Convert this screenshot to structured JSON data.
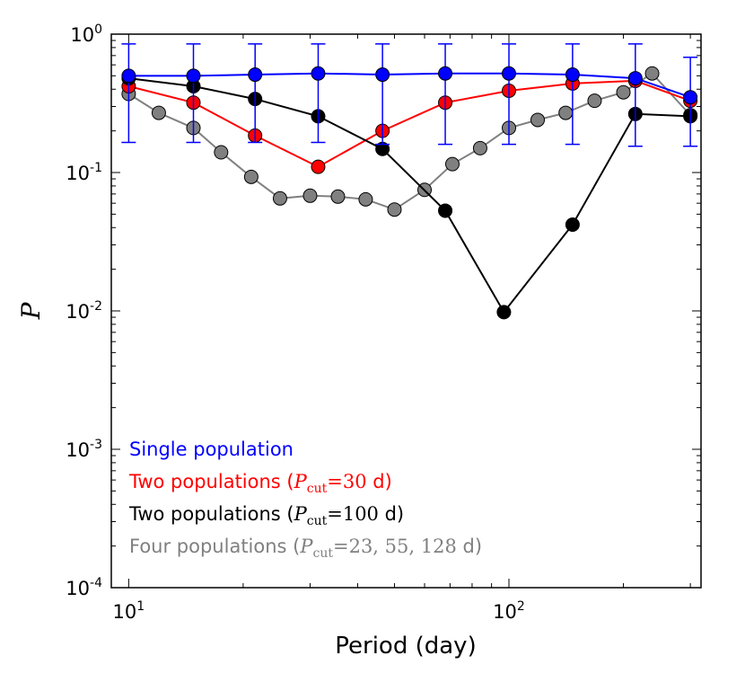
{
  "chart_data": {
    "type": "line",
    "xscale": "log",
    "yscale": "log",
    "xlim": [
      9.0,
      320.0
    ],
    "ylim": [
      0.0001,
      1.0
    ],
    "xlabel": "Period (day)",
    "ylabel": "P",
    "xticks": [
      {
        "value": 10,
        "base": "10",
        "exp": "1"
      },
      {
        "value": 100,
        "base": "10",
        "exp": "2"
      }
    ],
    "yticks": [
      {
        "value": 1,
        "base": "10",
        "exp": "0"
      },
      {
        "value": 0.1,
        "base": "10",
        "exp": "-1"
      },
      {
        "value": 0.01,
        "base": "10",
        "exp": "-2"
      },
      {
        "value": 0.001,
        "base": "10",
        "exp": "-3"
      },
      {
        "value": 0.0001,
        "base": "10",
        "exp": "-4"
      }
    ],
    "series": [
      {
        "name": "Four populations",
        "color": "#808080",
        "x": [
          10,
          12,
          14.8,
          17.5,
          21,
          25,
          30,
          35.5,
          42,
          50,
          60,
          71,
          84,
          100,
          119,
          141,
          168,
          200,
          238,
          300
        ],
        "values": [
          0.37,
          0.27,
          0.21,
          0.14,
          0.093,
          0.065,
          0.068,
          0.067,
          0.064,
          0.054,
          0.075,
          0.115,
          0.15,
          0.21,
          0.24,
          0.27,
          0.33,
          0.38,
          0.52,
          0.26
        ]
      },
      {
        "name": "Two populations (Pcut=30 d)",
        "color": "#ff0000",
        "x": [
          10,
          14.8,
          21.5,
          31.5,
          46.5,
          68,
          100,
          147,
          215,
          300
        ],
        "values": [
          0.42,
          0.32,
          0.185,
          0.11,
          0.2,
          0.32,
          0.39,
          0.44,
          0.46,
          0.33
        ]
      },
      {
        "name": "Two populations (Pcut=100 d)",
        "color": "#000000",
        "x": [
          10,
          14.8,
          21.5,
          31.5,
          46.5,
          68,
          97,
          147,
          215,
          300
        ],
        "values": [
          0.48,
          0.42,
          0.34,
          0.255,
          0.148,
          0.053,
          0.0098,
          0.042,
          0.265,
          0.255
        ]
      },
      {
        "name": "Single population",
        "color": "#0000ff",
        "x": [
          10,
          14.8,
          21.5,
          31.5,
          46.5,
          68,
          100,
          147,
          215,
          300
        ],
        "values": [
          0.5,
          0.5,
          0.51,
          0.52,
          0.51,
          0.52,
          0.52,
          0.51,
          0.48,
          0.35
        ],
        "error_low": [
          0.165,
          0.165,
          0.165,
          0.165,
          0.16,
          0.16,
          0.16,
          0.16,
          0.155,
          0.155
        ],
        "error_high": [
          0.85,
          0.85,
          0.85,
          0.85,
          0.85,
          0.85,
          0.85,
          0.85,
          0.85,
          0.68
        ]
      }
    ],
    "legend": {
      "position": "lower-left",
      "entries": [
        {
          "color": "#0000ff",
          "text": "Single population",
          "pre": "",
          "math": "",
          "sub": "",
          "post": ""
        },
        {
          "color": "#ff0000",
          "text": "",
          "pre": "Two populations (",
          "math": "P",
          "sub": "cut",
          "post": "d)",
          "eq": "=30 "
        },
        {
          "color": "#000000",
          "text": "",
          "pre": "Two populations (",
          "math": "P",
          "sub": "cut",
          "post": "d)",
          "eq": "=100 "
        },
        {
          "color": "#808080",
          "text": "",
          "pre": "Four populations (",
          "math": "P",
          "sub": "cut",
          "post": "d)",
          "eq": "=23, 55, 128 "
        }
      ]
    }
  }
}
